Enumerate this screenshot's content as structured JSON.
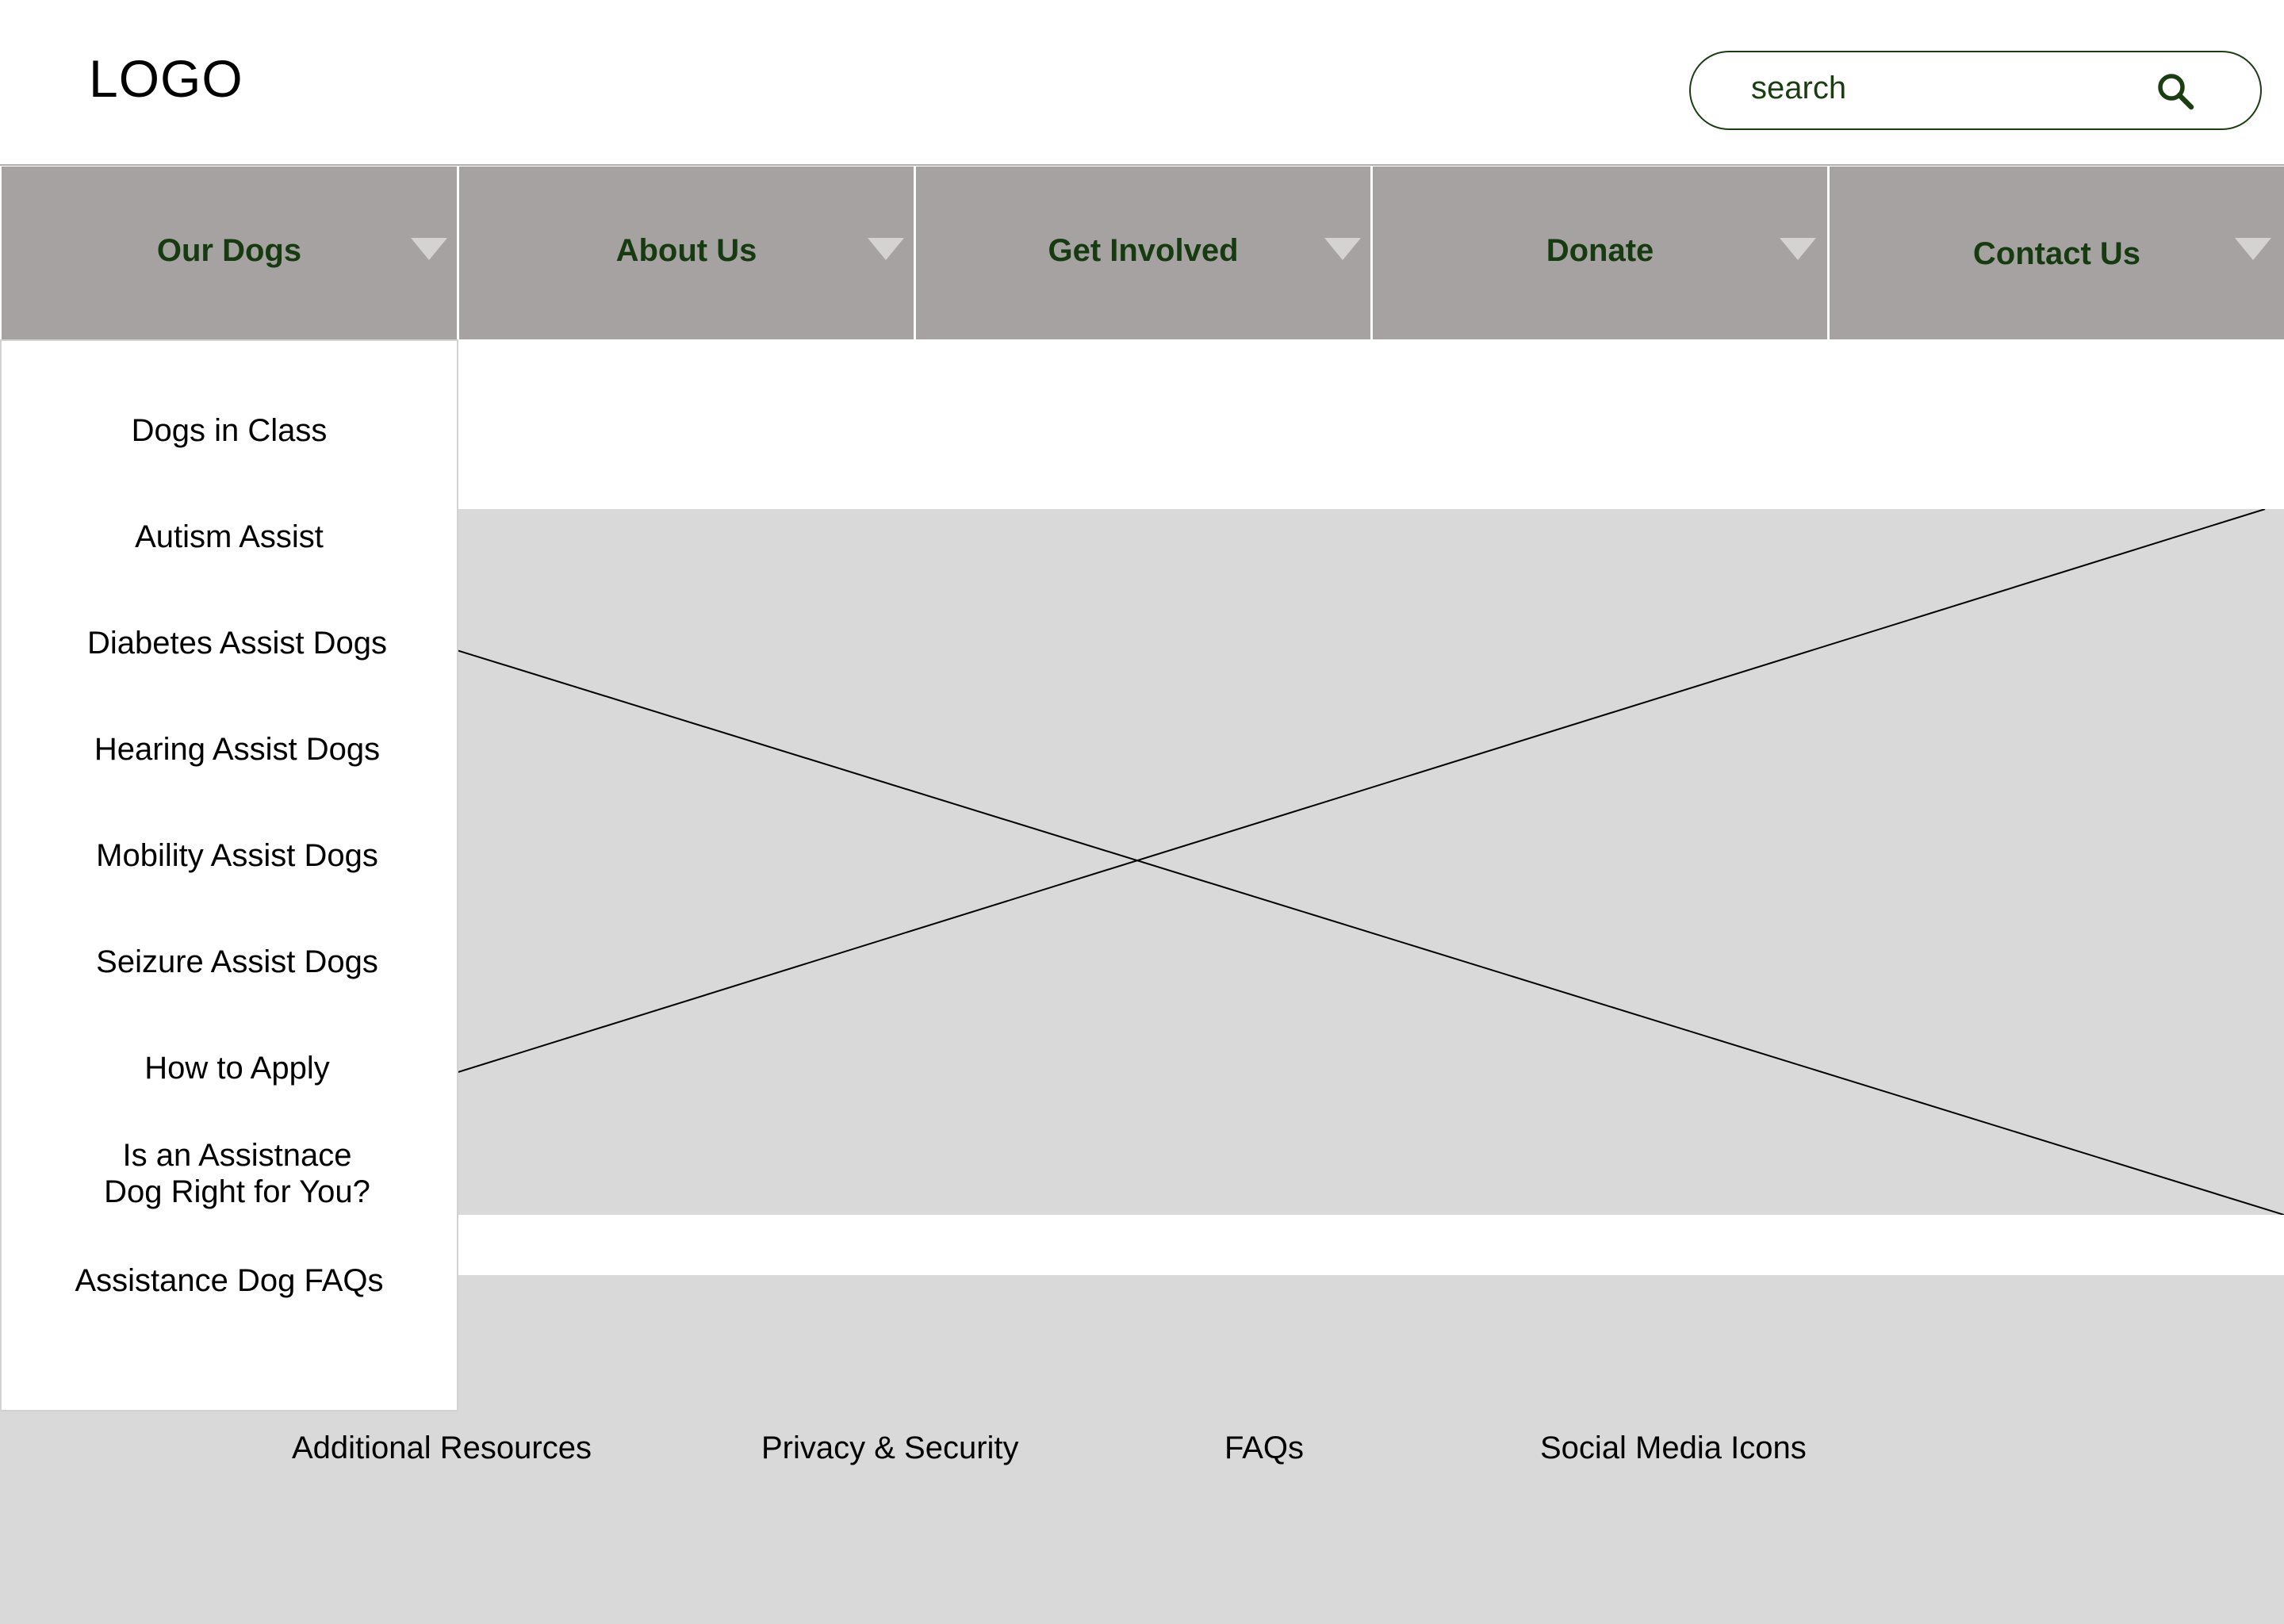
{
  "header": {
    "logo_text": "LOGO",
    "search": {
      "placeholder": "search",
      "icon": "search-icon"
    }
  },
  "nav": {
    "items": [
      {
        "label": "Our Dogs",
        "icon": "caret-down-icon"
      },
      {
        "label": "About Us",
        "icon": "caret-down-icon"
      },
      {
        "label": "Get Involved",
        "icon": "caret-down-icon"
      },
      {
        "label": "Donate",
        "icon": "caret-down-icon"
      },
      {
        "label": "Contact Us",
        "icon": "caret-down-icon"
      }
    ]
  },
  "dropdown": {
    "items": [
      "Dogs in Class",
      "Autism Assist",
      "Diabetes Assist Dogs",
      "Hearing Assist Dogs",
      "Mobility Assist Dogs",
      "Seizure Assist Dogs",
      "How to Apply",
      "Is an Assistnace Dog Right for You?",
      "Assistance Dog FAQs"
    ]
  },
  "footer": {
    "links": [
      "Additional Resources",
      "Privacy & Security",
      "FAQs",
      "Social Media Icons"
    ]
  },
  "colors": {
    "nav_background": "#a7a2a2",
    "nav_text": "#173b10",
    "placeholder_fill": "#d9d9d9",
    "search_border": "#1b3d12"
  }
}
